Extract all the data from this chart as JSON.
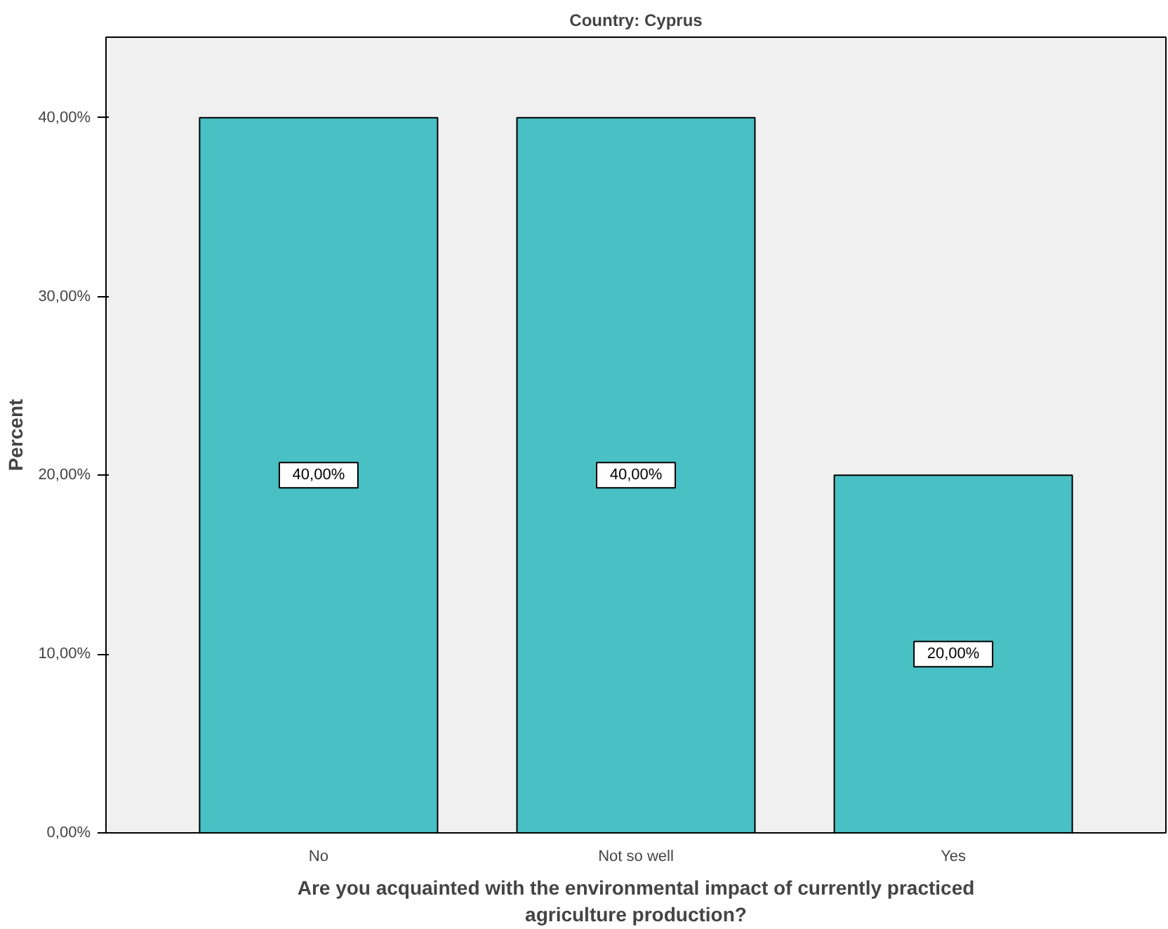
{
  "chart_data": {
    "type": "bar",
    "title": "Country: Cyprus",
    "xlabel": "Are you acquainted with the environmental impact of currently practiced\nagriculture production?",
    "ylabel": "Percent",
    "categories": [
      "No",
      "Not so well",
      "Yes"
    ],
    "values": [
      40,
      40,
      20
    ],
    "color": "#48c0c4",
    "value_labels": [
      "40,00%",
      "40,00%",
      "20,00%"
    ],
    "ylim": [
      0,
      44.5
    ],
    "yticks": [
      {
        "value": 0,
        "label": "0,00%"
      },
      {
        "value": 10,
        "label": "10,00%"
      },
      {
        "value": 20,
        "label": "20,00%"
      },
      {
        "value": 30,
        "label": "30,00%"
      },
      {
        "value": 40,
        "label": "40,00%"
      }
    ],
    "grid": false
  }
}
